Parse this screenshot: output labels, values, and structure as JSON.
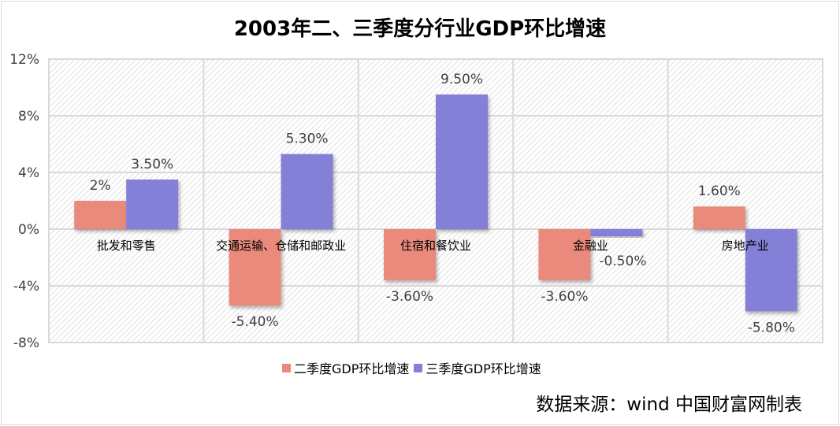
{
  "chart_data": {
    "type": "bar",
    "title": "2003年二、三季度分行业GDP环比增速",
    "categories": [
      "批发和零售",
      "交通运输、仓储和邮政业",
      "住宿和餐饮业",
      "金融业",
      "房地产业"
    ],
    "series": [
      {
        "name": "二季度GDP环比增速",
        "values": [
          2.0,
          -5.4,
          -3.6,
          -3.6,
          1.6
        ],
        "labels": [
          "2%",
          "-5.40%",
          "-3.60%",
          "-3.60%",
          "1.60%"
        ],
        "color": "#ea8a7b"
      },
      {
        "name": "三季度GDP环比增速",
        "values": [
          3.5,
          5.3,
          9.5,
          -0.5,
          -5.8
        ],
        "labels": [
          "3.50%",
          "5.30%",
          "9.50%",
          "-0.50%",
          "-5.80%"
        ],
        "color": "#8480d8"
      }
    ],
    "ylim": [
      -8,
      12
    ],
    "yticks": [
      12,
      8,
      4,
      0,
      -4,
      -8
    ],
    "ytick_labels": [
      "12%",
      "8%",
      "4%",
      "0%",
      "-4%",
      "-8%"
    ],
    "grid": true,
    "legend_position": "bottom",
    "xlabel": "",
    "ylabel": ""
  },
  "source": "数据来源：wind 中国财富网制表"
}
